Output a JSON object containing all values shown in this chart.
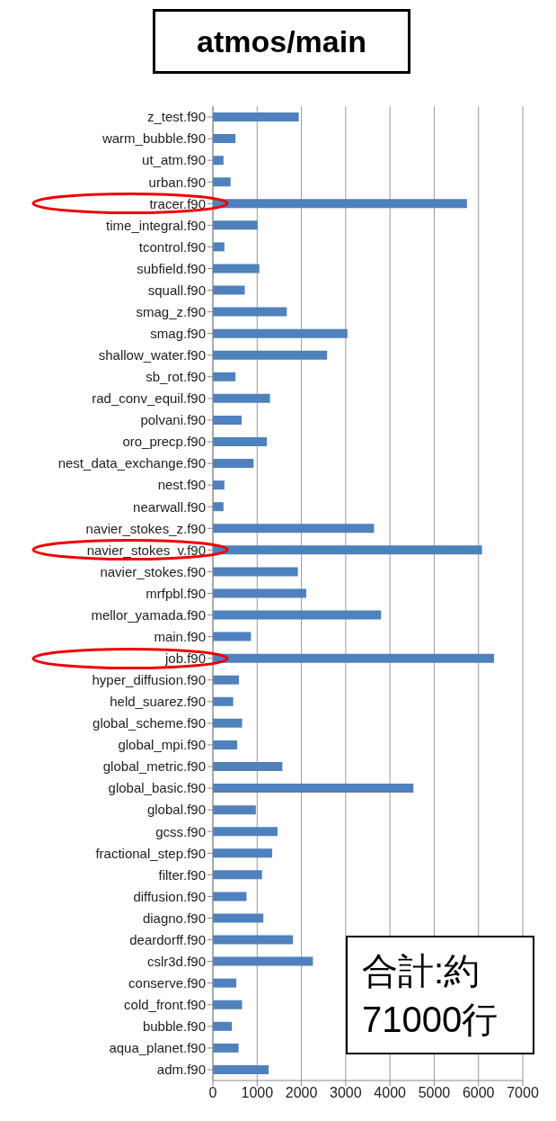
{
  "chart_data": {
    "type": "bar",
    "orientation": "horizontal",
    "title": "atmos/main",
    "categories": [
      "z_test.f90",
      "warm_bubble.f90",
      "ut_atm.f90",
      "urban.f90",
      "tracer.f90",
      "time_integral.f90",
      "tcontrol.f90",
      "subfield.f90",
      "squall.f90",
      "smag_z.f90",
      "smag.f90",
      "shallow_water.f90",
      "sb_rot.f90",
      "rad_conv_equil.f90",
      "polvani.f90",
      "oro_precp.f90",
      "nest_data_exchange.f90",
      "nest.f90",
      "nearwall.f90",
      "navier_stokes_z.f90",
      "navier_stokes_v.f90",
      "navier_stokes.f90",
      "mrfpbl.f90",
      "mellor_yamada.f90",
      "main.f90",
      "job.f90",
      "hyper_diffusion.f90",
      "held_suarez.f90",
      "global_scheme.f90",
      "global_mpi.f90",
      "global_metric.f90",
      "global_basic.f90",
      "global.f90",
      "gcss.f90",
      "fractional_step.f90",
      "filter.f90",
      "diffusion.f90",
      "diagno.f90",
      "deardorff.f90",
      "cslr3d.f90",
      "conserve.f90",
      "cold_front.f90",
      "bubble.f90",
      "aqua_planet.f90",
      "adm.f90"
    ],
    "values": [
      1940,
      510,
      240,
      400,
      5740,
      1010,
      260,
      1050,
      720,
      1670,
      3040,
      2580,
      510,
      1290,
      650,
      1220,
      920,
      260,
      240,
      3640,
      6080,
      1920,
      2110,
      3800,
      860,
      6350,
      590,
      460,
      660,
      550,
      1570,
      4530,
      970,
      1460,
      1340,
      1110,
      760,
      1140,
      1810,
      2260,
      530,
      660,
      430,
      580,
      1260
    ],
    "color": "#4f81bd",
    "xlim": [
      0,
      7000
    ],
    "xticks": [
      0,
      1000,
      2000,
      3000,
      4000,
      5000,
      6000,
      7000
    ],
    "grid": "x",
    "legend": false,
    "annotations": [
      "合計:約\n71000行"
    ]
  }
}
